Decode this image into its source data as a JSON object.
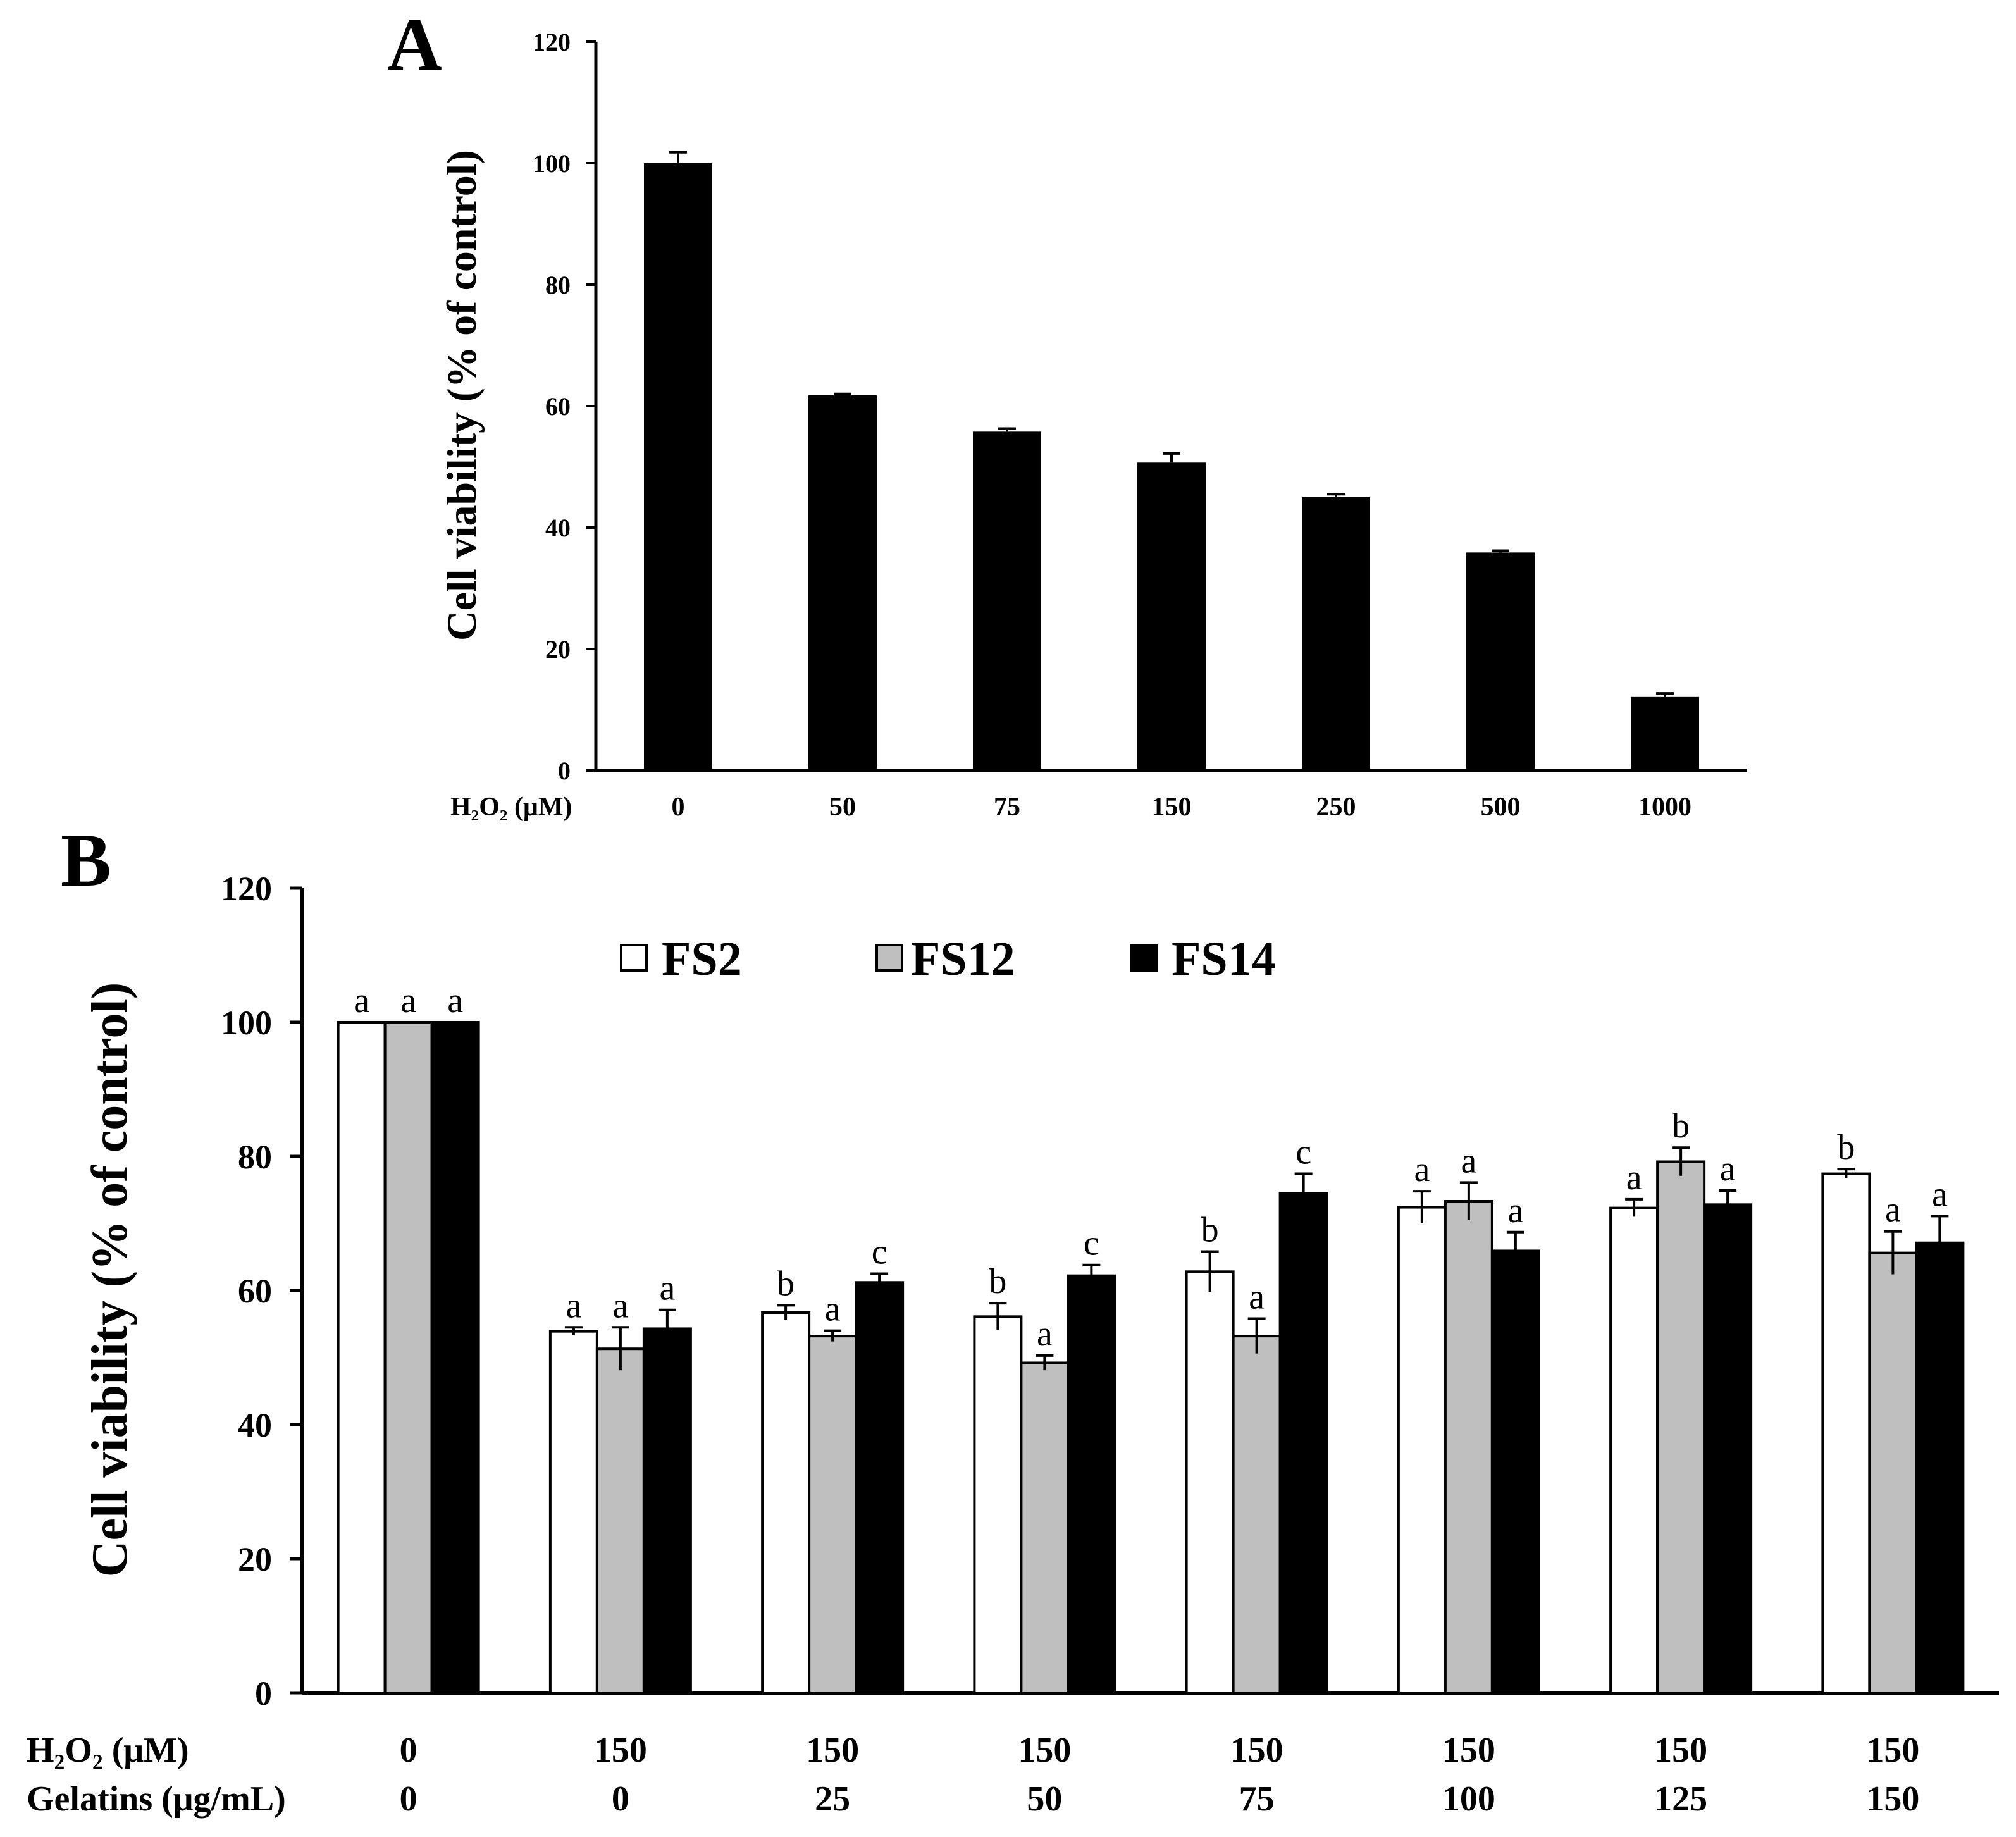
{
  "chart_data": [
    {
      "panel": "A",
      "type": "bar",
      "ylabel": "Cell viability (% of control)",
      "ylim": [
        0,
        120
      ],
      "yticks": [
        0,
        20,
        40,
        60,
        80,
        100,
        120
      ],
      "row_label": "H₂O₂ (μM)",
      "categories": [
        "0",
        "50",
        "75",
        "150",
        "250",
        "500",
        "1000"
      ],
      "values": [
        100,
        61.8,
        55.8,
        50.7,
        45.0,
        35.9,
        12.1
      ],
      "errors": [
        1.8,
        0.2,
        0.5,
        1.5,
        0.5,
        0.3,
        0.6
      ],
      "bar_color": "#000000"
    },
    {
      "panel": "B",
      "type": "bar",
      "ylabel": "Cell viability (% of control)",
      "ylim": [
        0,
        120
      ],
      "yticks": [
        0,
        20,
        40,
        60,
        80,
        100,
        120
      ],
      "row_labels": [
        "H₂O₂ (μM)",
        "Gelatins (μg/mL)"
      ],
      "h2o2": [
        "0",
        "150",
        "150",
        "150",
        "150",
        "150",
        "150",
        "150"
      ],
      "gelatins": [
        "0",
        "0",
        "25",
        "50",
        "75",
        "100",
        "125",
        "150"
      ],
      "series": [
        {
          "name": "FS2",
          "color": "#ffffff",
          "values": [
            100,
            53.9,
            56.7,
            56.1,
            62.8,
            72.4,
            72.3,
            77.4
          ],
          "errors": [
            0,
            0.6,
            1.1,
            2.0,
            3.0,
            2.4,
            1.3,
            0.7
          ],
          "letters": [
            "a",
            "a",
            "b",
            "b",
            "b",
            "a",
            "a",
            "b"
          ]
        },
        {
          "name": "FS12",
          "color": "#bfbfbf",
          "values": [
            100,
            51.3,
            53.2,
            49.2,
            53.2,
            73.3,
            79.2,
            65.6
          ],
          "errors": [
            0,
            3.2,
            0.8,
            1.1,
            2.6,
            2.8,
            2.1,
            3.2
          ],
          "letters": [
            "a",
            "a",
            "a",
            "a",
            "a",
            "a",
            "b",
            "a"
          ]
        },
        {
          "name": "FS14",
          "color": "#000000",
          "values": [
            100,
            54.3,
            61.2,
            62.2,
            74.5,
            65.9,
            72.8,
            67.1
          ],
          "errors": [
            0,
            2.8,
            1.3,
            1.6,
            2.9,
            2.8,
            2.1,
            4.0
          ],
          "letters": [
            "a",
            "a",
            "c",
            "c",
            "c",
            "a",
            "a",
            "a"
          ]
        }
      ]
    }
  ]
}
